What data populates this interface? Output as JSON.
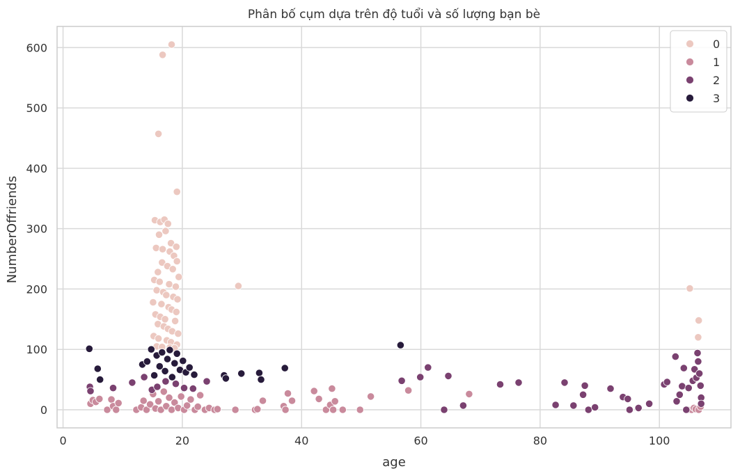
{
  "chart_data": {
    "type": "scatter",
    "title": "Phân bố cụm dựa trên độ tuổi và số lượng bạn bè",
    "xlabel": "age",
    "ylabel": "NumberOffriends",
    "xlim": [
      -1,
      112
    ],
    "ylim": [
      -30,
      635
    ],
    "xticks": [
      0,
      20,
      40,
      60,
      80,
      100
    ],
    "yticks": [
      0,
      100,
      200,
      300,
      400,
      500,
      600
    ],
    "grid": true,
    "legend_position": "top-right",
    "colors": {
      "0": "#ecc8c0",
      "1": "#c98a9c",
      "2": "#7a4170",
      "3": "#271b3b"
    },
    "series": [
      {
        "name": "0",
        "points": [
          [
            18.2,
            605
          ],
          [
            16.7,
            588
          ],
          [
            16.0,
            457
          ],
          [
            19.1,
            361
          ],
          [
            15.4,
            314
          ],
          [
            16.3,
            311
          ],
          [
            17.0,
            315
          ],
          [
            17.6,
            308
          ],
          [
            17.2,
            296
          ],
          [
            16.1,
            290
          ],
          [
            18.1,
            276
          ],
          [
            19.0,
            270
          ],
          [
            15.6,
            268
          ],
          [
            16.7,
            266
          ],
          [
            17.9,
            262
          ],
          [
            18.6,
            255
          ],
          [
            19.1,
            246
          ],
          [
            16.6,
            244
          ],
          [
            17.5,
            238
          ],
          [
            18.4,
            233
          ],
          [
            15.9,
            228
          ],
          [
            19.4,
            220
          ],
          [
            15.3,
            215
          ],
          [
            16.2,
            212
          ],
          [
            17.8,
            208
          ],
          [
            18.9,
            204
          ],
          [
            29.4,
            205
          ],
          [
            15.7,
            198
          ],
          [
            16.8,
            195
          ],
          [
            17.3,
            190
          ],
          [
            18.5,
            187
          ],
          [
            19.2,
            183
          ],
          [
            15.1,
            178
          ],
          [
            16.5,
            175
          ],
          [
            17.7,
            170
          ],
          [
            18.2,
            166
          ],
          [
            19.0,
            162
          ],
          [
            15.5,
            158
          ],
          [
            16.3,
            154
          ],
          [
            17.1,
            150
          ],
          [
            18.8,
            147
          ],
          [
            15.9,
            142
          ],
          [
            16.9,
            138
          ],
          [
            17.6,
            134
          ],
          [
            18.3,
            130
          ],
          [
            19.3,
            126
          ],
          [
            15.2,
            122
          ],
          [
            16.0,
            118
          ],
          [
            17.4,
            115
          ],
          [
            18.1,
            112
          ],
          [
            19.1,
            108
          ],
          [
            15.7,
            105
          ],
          [
            16.6,
            104
          ],
          [
            17.9,
            103
          ],
          [
            18.7,
            102
          ],
          [
            105.1,
            201
          ],
          [
            106.6,
            148
          ],
          [
            106.5,
            120
          ]
        ]
      },
      {
        "name": "1",
        "points": [
          [
            4.6,
            10
          ],
          [
            5.0,
            16
          ],
          [
            5.5,
            13
          ],
          [
            6.1,
            18
          ],
          [
            7.4,
            0
          ],
          [
            8.1,
            17
          ],
          [
            8.4,
            6
          ],
          [
            8.9,
            0
          ],
          [
            9.3,
            11
          ],
          [
            12.3,
            0
          ],
          [
            13.1,
            4
          ],
          [
            13.5,
            15
          ],
          [
            14.0,
            0
          ],
          [
            14.6,
            9
          ],
          [
            15.1,
            26
          ],
          [
            15.5,
            2
          ],
          [
            16.0,
            14
          ],
          [
            16.4,
            0
          ],
          [
            16.9,
            30
          ],
          [
            17.3,
            6
          ],
          [
            17.8,
            20
          ],
          [
            18.2,
            0
          ],
          [
            18.7,
            12
          ],
          [
            19.3,
            3
          ],
          [
            19.8,
            22
          ],
          [
            20.3,
            0
          ],
          [
            20.8,
            7
          ],
          [
            21.4,
            17
          ],
          [
            22.1,
            0
          ],
          [
            22.6,
            5
          ],
          [
            23.0,
            24
          ],
          [
            23.8,
            0
          ],
          [
            24.5,
            3
          ],
          [
            25.4,
            0
          ],
          [
            25.9,
            1
          ],
          [
            28.9,
            0
          ],
          [
            32.2,
            0
          ],
          [
            32.6,
            1
          ],
          [
            33.5,
            15
          ],
          [
            37.0,
            6
          ],
          [
            37.3,
            0
          ],
          [
            37.7,
            27
          ],
          [
            38.4,
            15
          ],
          [
            42.1,
            31
          ],
          [
            42.9,
            18
          ],
          [
            44.1,
            0
          ],
          [
            44.8,
            8
          ],
          [
            45.1,
            35
          ],
          [
            45.3,
            0
          ],
          [
            45.6,
            14
          ],
          [
            46.9,
            0
          ],
          [
            49.8,
            0
          ],
          [
            51.6,
            22
          ],
          [
            57.9,
            32
          ],
          [
            68.1,
            26
          ],
          [
            104.9,
            0
          ],
          [
            105.4,
            0
          ],
          [
            105.8,
            3
          ],
          [
            106.1,
            1
          ],
          [
            106.6,
            0
          ],
          [
            106.9,
            5
          ]
        ]
      },
      {
        "name": "2",
        "points": [
          [
            4.5,
            38
          ],
          [
            4.6,
            31
          ],
          [
            8.4,
            36
          ],
          [
            11.6,
            45
          ],
          [
            13.6,
            54
          ],
          [
            14.9,
            33
          ],
          [
            15.8,
            38
          ],
          [
            17.2,
            47
          ],
          [
            18.9,
            43
          ],
          [
            20.3,
            36
          ],
          [
            21.8,
            35
          ],
          [
            24.1,
            47
          ],
          [
            56.8,
            48
          ],
          [
            59.9,
            54
          ],
          [
            61.2,
            70
          ],
          [
            63.9,
            0
          ],
          [
            64.6,
            56
          ],
          [
            67.1,
            7
          ],
          [
            73.3,
            42
          ],
          [
            76.4,
            45
          ],
          [
            82.6,
            8
          ],
          [
            84.1,
            45
          ],
          [
            85.6,
            7
          ],
          [
            87.2,
            25
          ],
          [
            87.5,
            40
          ],
          [
            88.1,
            0
          ],
          [
            89.2,
            4
          ],
          [
            91.8,
            35
          ],
          [
            93.9,
            21
          ],
          [
            94.7,
            18
          ],
          [
            95.0,
            0
          ],
          [
            96.5,
            3
          ],
          [
            98.3,
            10
          ],
          [
            100.8,
            42
          ],
          [
            101.3,
            46
          ],
          [
            102.7,
            88
          ],
          [
            102.9,
            14
          ],
          [
            103.4,
            25
          ],
          [
            103.8,
            39
          ],
          [
            104.1,
            69
          ],
          [
            104.5,
            0
          ],
          [
            104.9,
            36
          ],
          [
            105.6,
            48
          ],
          [
            105.9,
            67
          ],
          [
            106.2,
            53
          ],
          [
            106.4,
            94
          ],
          [
            106.5,
            80
          ],
          [
            106.7,
            60
          ],
          [
            106.9,
            40
          ],
          [
            107.0,
            20
          ],
          [
            107.0,
            10
          ]
        ]
      },
      {
        "name": "3",
        "points": [
          [
            4.4,
            101
          ],
          [
            5.8,
            68
          ],
          [
            6.2,
            50
          ],
          [
            13.3,
            75
          ],
          [
            14.1,
            80
          ],
          [
            14.8,
            100
          ],
          [
            15.3,
            57
          ],
          [
            15.7,
            90
          ],
          [
            16.2,
            72
          ],
          [
            16.6,
            95
          ],
          [
            17.1,
            64
          ],
          [
            17.5,
            84
          ],
          [
            17.9,
            99
          ],
          [
            18.3,
            54
          ],
          [
            18.7,
            77
          ],
          [
            19.1,
            93
          ],
          [
            19.6,
            66
          ],
          [
            20.1,
            81
          ],
          [
            20.6,
            62
          ],
          [
            21.2,
            70
          ],
          [
            22.0,
            58
          ],
          [
            27.0,
            57
          ],
          [
            27.3,
            52
          ],
          [
            29.9,
            60
          ],
          [
            32.9,
            61
          ],
          [
            33.2,
            50
          ],
          [
            37.2,
            69
          ],
          [
            56.6,
            107
          ]
        ]
      }
    ]
  }
}
